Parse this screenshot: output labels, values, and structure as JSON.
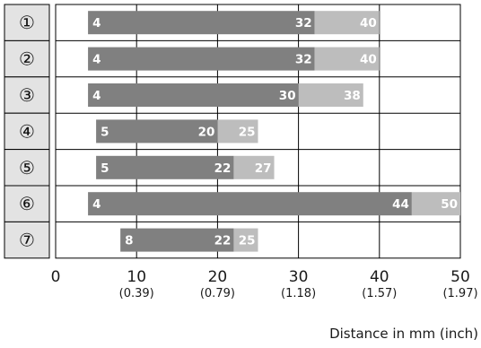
{
  "chart_data": {
    "type": "bar",
    "orientation": "horizontal",
    "stacked_ranges": true,
    "categories": [
      "①",
      "②",
      "③",
      "④",
      "⑤",
      "⑥",
      "⑦"
    ],
    "ranges": [
      {
        "start": 4,
        "mid": 32,
        "end": 40
      },
      {
        "start": 4,
        "mid": 32,
        "end": 40
      },
      {
        "start": 4,
        "mid": 30,
        "end": 38
      },
      {
        "start": 5,
        "mid": 20,
        "end": 25
      },
      {
        "start": 5,
        "mid": 22,
        "end": 27
      },
      {
        "start": 4,
        "mid": 44,
        "end": 50
      },
      {
        "start": 8,
        "mid": 22,
        "end": 25
      }
    ],
    "xticks": [
      {
        "value": 0,
        "label": "0",
        "sublabel": ""
      },
      {
        "value": 10,
        "label": "10",
        "sublabel": "(0.39)"
      },
      {
        "value": 20,
        "label": "20",
        "sublabel": "(0.79)"
      },
      {
        "value": 30,
        "label": "30",
        "sublabel": "(1.18)"
      },
      {
        "value": 40,
        "label": "40",
        "sublabel": "(1.57)"
      },
      {
        "value": 50,
        "label": "50",
        "sublabel": "(1.97)"
      }
    ],
    "xlim": [
      0,
      50
    ],
    "xlabel": "Distance in mm (inch)",
    "grid": true,
    "colors": {
      "primary": "#808080",
      "secondary": "#bdbdbd",
      "label_bg": "#e3e3e3",
      "grid": "#000000"
    }
  }
}
